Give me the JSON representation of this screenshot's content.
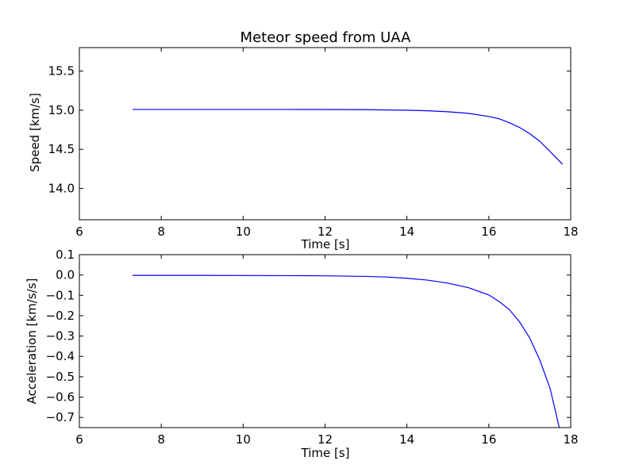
{
  "chart_data": [
    {
      "type": "line",
      "title": "Meteor speed from  UAA",
      "xlabel": "Time [s]",
      "ylabel": "Speed [km/s]",
      "xlim": [
        6,
        18
      ],
      "ylim": [
        13.6,
        15.8
      ],
      "xticks": [
        "6",
        "8",
        "10",
        "12",
        "14",
        "16",
        "18"
      ],
      "yticks": [
        "14.0",
        "14.5",
        "15.0",
        "15.5"
      ],
      "grid": false,
      "series": [
        {
          "color": "#0000ff",
          "x": [
            7.3,
            8,
            9,
            10,
            11,
            12,
            13,
            14,
            14.5,
            15,
            15.5,
            16,
            16.25,
            16.5,
            16.75,
            17,
            17.25,
            17.5,
            17.8
          ],
          "y": [
            15.01,
            15.01,
            15.01,
            15.01,
            15.01,
            15.009,
            15.007,
            15.0,
            14.993,
            14.98,
            14.96,
            14.92,
            14.89,
            14.84,
            14.78,
            14.7,
            14.6,
            14.47,
            14.31
          ]
        }
      ]
    },
    {
      "type": "line",
      "title": "",
      "xlabel": "Time [s]",
      "ylabel": "Acceleration [km/s/s]",
      "xlim": [
        6,
        18
      ],
      "ylim": [
        -0.75,
        0.1
      ],
      "xticks": [
        "6",
        "8",
        "10",
        "12",
        "14",
        "16",
        "18"
      ],
      "yticks": [
        "0.1",
        "0.0",
        "−0.1",
        "−0.2",
        "−0.3",
        "−0.4",
        "−0.5",
        "−0.6",
        "−0.7"
      ],
      "grid": false,
      "series": [
        {
          "color": "#0000ff",
          "x": [
            7.3,
            9,
            11,
            12,
            13,
            13.5,
            14,
            14.5,
            15,
            15.5,
            16,
            16.25,
            16.5,
            16.75,
            17,
            17.25,
            17.5,
            17.72
          ],
          "y": [
            -0.002,
            -0.002,
            -0.003,
            -0.004,
            -0.007,
            -0.01,
            -0.016,
            -0.025,
            -0.04,
            -0.062,
            -0.098,
            -0.13,
            -0.17,
            -0.23,
            -0.31,
            -0.42,
            -0.56,
            -0.75
          ]
        }
      ]
    }
  ]
}
